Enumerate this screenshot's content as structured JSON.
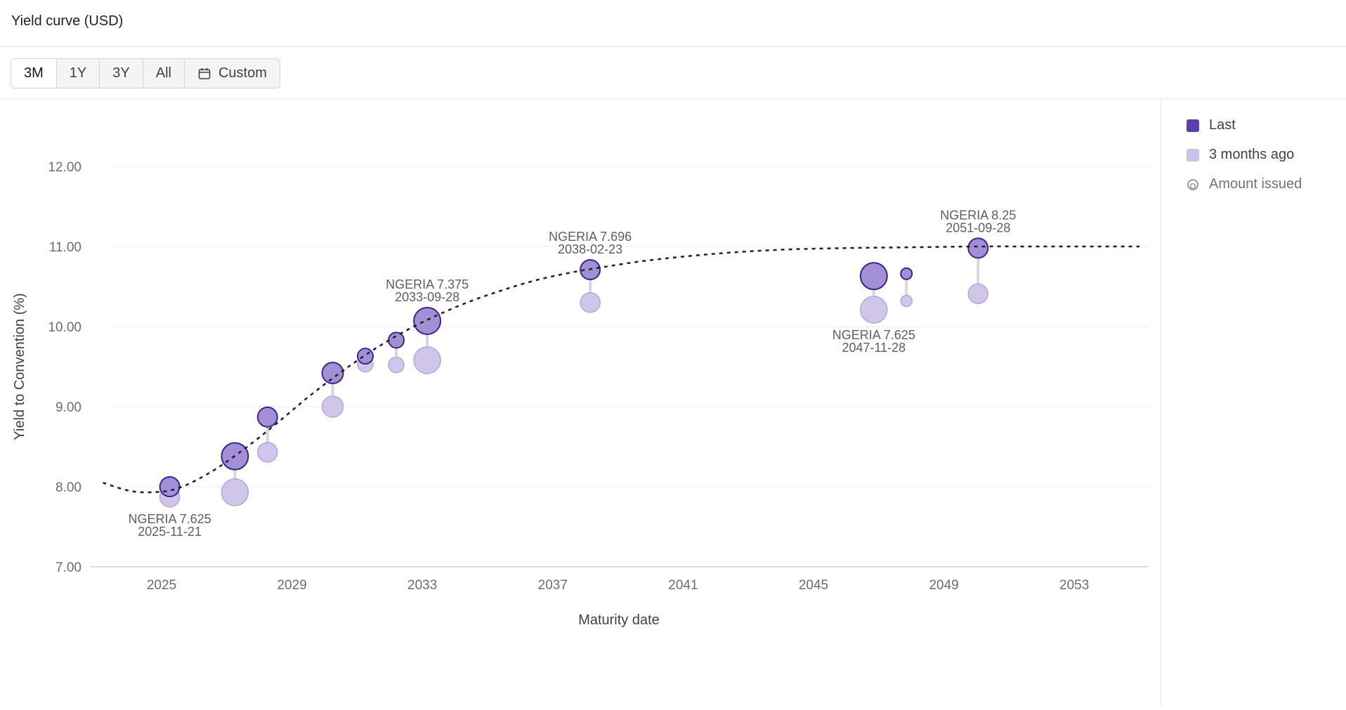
{
  "header": {
    "title": "Yield curve (USD)"
  },
  "toolbar": {
    "ranges": [
      {
        "label": "3M",
        "active": true
      },
      {
        "label": "1Y",
        "active": false
      },
      {
        "label": "3Y",
        "active": false
      },
      {
        "label": "All",
        "active": false
      },
      {
        "label": "Custom",
        "active": false,
        "icon": "calendar-icon"
      }
    ]
  },
  "legend": {
    "items": [
      {
        "label": "Last",
        "color": "#5b3fb0"
      },
      {
        "label": "3 months ago",
        "color": "#cbc3e7"
      },
      {
        "label": "Amount issued",
        "icon": "ring-icon"
      }
    ]
  },
  "colors": {
    "last_fill": "#a28fd6",
    "last_stroke": "#3c2585",
    "prev_fill": "#cfc6ea",
    "prev_stroke": "#b3a6dd",
    "connector": "#d7d7da",
    "curve": "#1f1f24",
    "grid": "#ebebee"
  },
  "chart_data": {
    "type": "scatter",
    "xlabel": "Maturity date",
    "ylabel": "Yield to Convention (%)",
    "ylim": [
      7,
      12.6
    ],
    "xlim": [
      2022.8,
      2055.2
    ],
    "yticks": [
      "7.00",
      "8.00",
      "9.00",
      "10.00",
      "11.00",
      "12.00"
    ],
    "xticks": [
      "2025",
      "2029",
      "2033",
      "2037",
      "2041",
      "2045",
      "2049",
      "2053"
    ],
    "grid": true,
    "legend_position": "right",
    "bonds": [
      {
        "x": 2025.25,
        "last": 8.0,
        "prev": 7.87,
        "size": "small",
        "label": "NGERIA 7.625",
        "date": "2025-11-21",
        "label_pos": "below"
      },
      {
        "x": 2027.25,
        "last": 8.38,
        "prev": 7.93,
        "size": "large"
      },
      {
        "x": 2028.25,
        "last": 8.87,
        "prev": 8.43,
        "size": "small"
      },
      {
        "x": 2030.25,
        "last": 9.42,
        "prev": 9.0,
        "size": "medium"
      },
      {
        "x": 2031.25,
        "last": 9.63,
        "prev": 9.53,
        "size": "xsmall"
      },
      {
        "x": 2032.2,
        "last": 9.83,
        "prev": 9.52,
        "size": "xsmall"
      },
      {
        "x": 2033.15,
        "last": 10.07,
        "prev": 9.58,
        "size": "large",
        "label": "NGERIA 7.375",
        "date": "2033-09-28",
        "label_pos": "above"
      },
      {
        "x": 2038.15,
        "last": 10.71,
        "prev": 10.3,
        "size": "small",
        "label": "NGERIA 7.696",
        "date": "2038-02-23",
        "label_pos": "above"
      },
      {
        "x": 2046.85,
        "last": 10.63,
        "prev": 10.21,
        "size": "large",
        "label": "NGERIA 7.625",
        "date": "2047-11-28",
        "label_pos": "below"
      },
      {
        "x": 2047.85,
        "last": 10.66,
        "prev": 10.32,
        "size": "tiny"
      },
      {
        "x": 2050.05,
        "last": 10.98,
        "prev": 10.41,
        "size": "small",
        "label": "NGERIA 8.25",
        "date": "2051-09-28",
        "label_pos": "above"
      }
    ],
    "curve": {
      "style": "dashed",
      "x": [
        2023.2,
        2024.0,
        2024.7,
        2025.5,
        2026.5,
        2027.5,
        2028.5,
        2029.5,
        2030.5,
        2031.5,
        2032.5,
        2033.5,
        2034.5,
        2035.5,
        2036.5,
        2037.5,
        2038.5,
        2040,
        2042,
        2044,
        2046,
        2048,
        2050,
        2052,
        2054,
        2055
      ],
      "y": [
        8.05,
        7.95,
        7.93,
        7.98,
        8.18,
        8.46,
        8.78,
        9.12,
        9.43,
        9.71,
        9.95,
        10.15,
        10.32,
        10.46,
        10.58,
        10.67,
        10.74,
        10.83,
        10.91,
        10.96,
        10.98,
        10.99,
        11.0,
        11.0,
        11.0,
        11.0
      ]
    }
  }
}
